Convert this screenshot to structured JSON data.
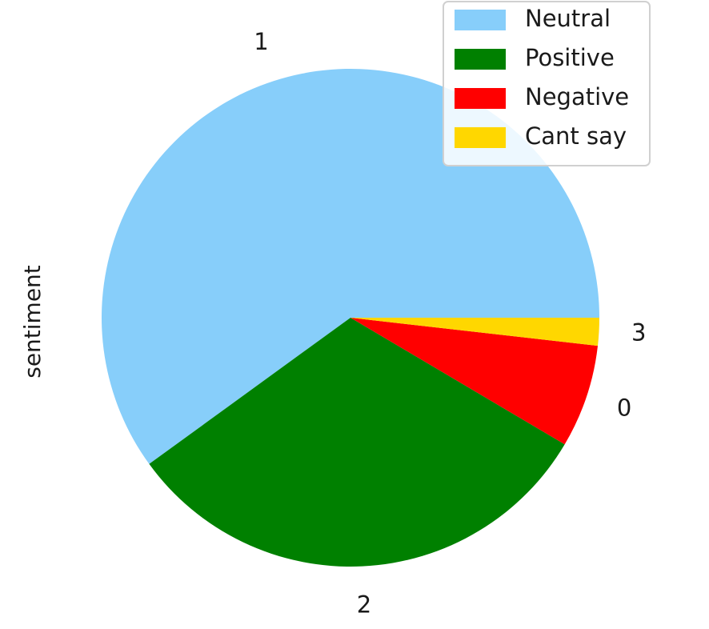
{
  "chart_data": {
    "type": "pie",
    "ylabel": "sentiment",
    "slices": [
      {
        "label": "1",
        "value": 60.0,
        "color": "#87CEFA"
      },
      {
        "label": "2",
        "value": 31.5,
        "color": "#008000"
      },
      {
        "label": "0",
        "value": 6.7,
        "color": "#FF0000"
      },
      {
        "label": "3",
        "value": 1.8,
        "color": "#FFD700"
      }
    ],
    "legend": {
      "placement": "top-right",
      "entries": [
        {
          "label": "Neutral",
          "color": "#87CEFA"
        },
        {
          "label": "Positive",
          "color": "#008000"
        },
        {
          "label": "Negative",
          "color": "#FF0000"
        },
        {
          "label": "Cant say",
          "color": "#FFD700"
        }
      ]
    }
  }
}
